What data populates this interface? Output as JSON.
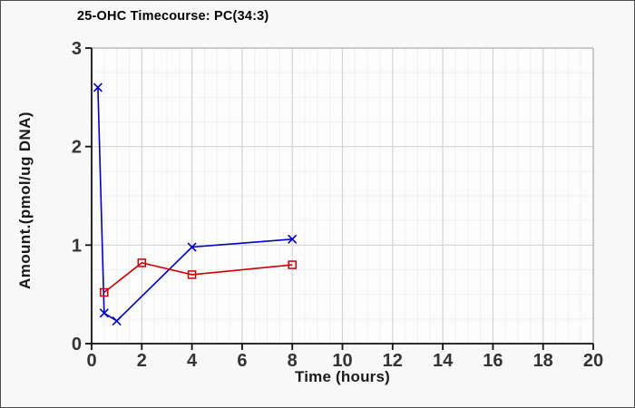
{
  "window": {
    "background": "#f8f8f8",
    "border_color": "#4d4d4d"
  },
  "chart_data": {
    "type": "line",
    "title": "25-OHC Timecourse: PC(34:3)",
    "xlabel": "Time (hours)",
    "ylabel": "Amount.(pmol/ug DNA)",
    "xlim": [
      0,
      20
    ],
    "ylim": [
      0,
      3
    ],
    "xticks": [
      0,
      2,
      4,
      6,
      8,
      10,
      12,
      14,
      16,
      18,
      20
    ],
    "yticks": [
      0,
      1,
      2,
      3
    ],
    "x_minor_step": 0.5,
    "y_minor_step": 0.25,
    "grid": "on",
    "legend": "none",
    "colors": {
      "plot_background": "#fcfcfc",
      "minor_grid": "#f0f0f0",
      "major_grid": "#d4d4d4",
      "plot_border": "#b9b9b9",
      "axis": "#111111",
      "tick_label": "#333333"
    },
    "series": [
      {
        "name": "blue-series",
        "marker": "x",
        "color": "#0000cc",
        "x": [
          0.25,
          0.5,
          1,
          4,
          8
        ],
        "y": [
          2.6,
          0.31,
          0.23,
          0.98,
          1.06
        ]
      },
      {
        "name": "red-series",
        "marker": "open-square",
        "color": "#cc0000",
        "x": [
          0.5,
          2,
          4,
          8
        ],
        "y": [
          0.52,
          0.82,
          0.7,
          0.8
        ]
      }
    ]
  }
}
